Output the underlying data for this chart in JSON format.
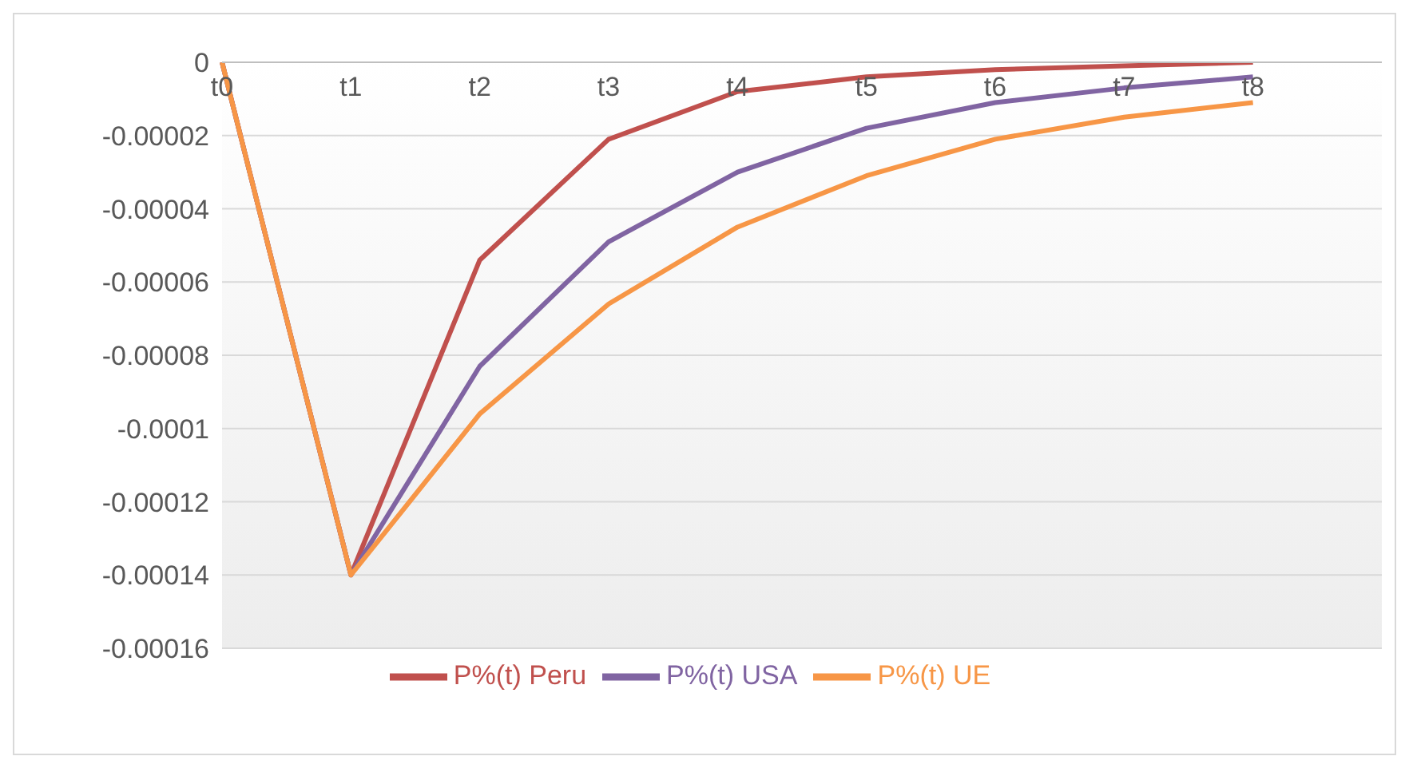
{
  "chart_data": {
    "type": "line",
    "categories": [
      "t0",
      "t1",
      "t2",
      "t3",
      "t4",
      "t5",
      "t6",
      "t7",
      "t8",
      null
    ],
    "series": [
      {
        "name": "P%(t) Peru",
        "color": "#c0504d",
        "values": [
          0,
          -0.00014,
          -5.4e-05,
          -2.1e-05,
          -8e-06,
          -4e-06,
          -2e-06,
          -1e-06,
          0,
          null
        ]
      },
      {
        "name": "P%(t) USA",
        "color": "#8064a2",
        "values": [
          0,
          -0.00014,
          -8.3e-05,
          -4.9e-05,
          -3e-05,
          -1.8e-05,
          -1.1e-05,
          -7e-06,
          -4e-06,
          null
        ]
      },
      {
        "name": "P%(t) UE",
        "color": "#f79646",
        "values": [
          0,
          -0.00014,
          -9.6e-05,
          -6.6e-05,
          -4.5e-05,
          -3.1e-05,
          -2.1e-05,
          -1.5e-05,
          -1.1e-05,
          null
        ]
      }
    ],
    "ylim": [
      -0.00016,
      0
    ],
    "yticks": [
      {
        "value": 0,
        "label": "0"
      },
      {
        "value": -2e-05,
        "label": "-0.00002"
      },
      {
        "value": -4e-05,
        "label": "-0.00004"
      },
      {
        "value": -6e-05,
        "label": "-0.00006"
      },
      {
        "value": -8e-05,
        "label": "-0.00008"
      },
      {
        "value": -0.0001,
        "label": "-0.0001"
      },
      {
        "value": -0.00012,
        "label": "-0.00012"
      },
      {
        "value": -0.00014,
        "label": "-0.00014"
      },
      {
        "value": -0.00016,
        "label": "-0.00016"
      }
    ],
    "grid": "y",
    "legend": "bottom",
    "marker": "none",
    "line_style": "solid"
  }
}
